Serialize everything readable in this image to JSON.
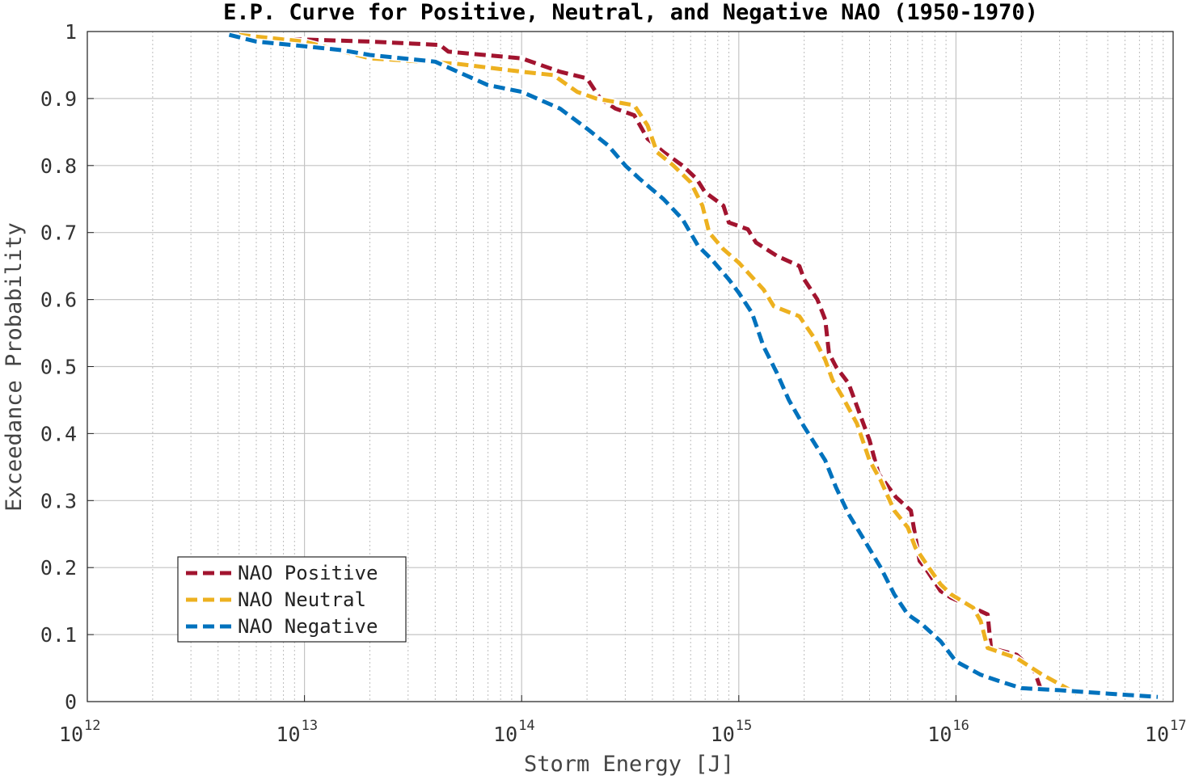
{
  "chart_data": {
    "type": "line",
    "title": "E.P. Curve for Positive, Neutral, and Negative NAO (1950-1970)",
    "xlabel": "Storm Energy [J]",
    "ylabel": "Exceedance Probability",
    "xscale": "log",
    "xlim": [
      1000000000000.0,
      1e+17
    ],
    "ylim": [
      0,
      1
    ],
    "x_ticks": [
      {
        "base": "10",
        "exp": "12",
        "value": 1000000000000.0
      },
      {
        "base": "10",
        "exp": "13",
        "value": 10000000000000.0
      },
      {
        "base": "10",
        "exp": "14",
        "value": 100000000000000.0
      },
      {
        "base": "10",
        "exp": "15",
        "value": 1000000000000000.0
      },
      {
        "base": "10",
        "exp": "16",
        "value": 1e+16
      },
      {
        "base": "10",
        "exp": "17",
        "value": 1e+17
      }
    ],
    "y_ticks": [
      {
        "label": "0",
        "value": 0
      },
      {
        "label": "0.1",
        "value": 0.1
      },
      {
        "label": "0.2",
        "value": 0.2
      },
      {
        "label": "0.3",
        "value": 0.3
      },
      {
        "label": "0.4",
        "value": 0.4
      },
      {
        "label": "0.5",
        "value": 0.5
      },
      {
        "label": "0.6",
        "value": 0.6
      },
      {
        "label": "0.7",
        "value": 0.7
      },
      {
        "label": "0.8",
        "value": 0.8
      },
      {
        "label": "0.9",
        "value": 0.9
      },
      {
        "label": "1",
        "value": 1
      }
    ],
    "grid": true,
    "minor_grid": true,
    "legend_position": "bottom-left",
    "series": [
      {
        "name": "NAO Positive",
        "color": "#A2142F",
        "x": [
          6000000000000.0,
          10000000000000.0,
          20000000000000.0,
          42000000000000.0,
          46000000000000.0,
          100000000000000.0,
          150000000000000.0,
          200000000000000.0,
          230000000000000.0,
          270000000000000.0,
          330000000000000.0,
          380000000000000.0,
          450000000000000.0,
          550000000000000.0,
          640000000000000.0,
          700000000000000.0,
          850000000000000.0,
          900000000000000.0,
          1100000000000000.0,
          1200000000000000.0,
          1500000000000000.0,
          1900000000000000.0,
          2000000000000000.0,
          2300000000000000.0,
          2500000000000000.0,
          2600000000000000.0,
          2800000000000000.0,
          3200000000000000.0,
          3600000000000000.0,
          4000000000000000.0,
          4400000000000000.0,
          5300000000000000.0,
          6200000000000000.0,
          6800000000000000.0,
          7200000000000000.0,
          8500000000000000.0,
          9500000000000000.0,
          1.2e+16,
          1.4e+16,
          1.45e+16,
          1.9e+16,
          2.3e+16,
          2.5e+16
        ],
        "y": [
          0.99,
          0.988,
          0.985,
          0.98,
          0.97,
          0.96,
          0.94,
          0.93,
          0.9,
          0.885,
          0.875,
          0.84,
          0.82,
          0.8,
          0.78,
          0.76,
          0.74,
          0.715,
          0.705,
          0.685,
          0.665,
          0.65,
          0.63,
          0.6,
          0.57,
          0.52,
          0.5,
          0.475,
          0.43,
          0.39,
          0.34,
          0.305,
          0.285,
          0.21,
          0.2,
          0.165,
          0.155,
          0.14,
          0.13,
          0.08,
          0.07,
          0.045,
          0.012
        ]
      },
      {
        "name": "NAO Neutral",
        "color": "#EDB120",
        "x": [
          5000000000000.0,
          10000000000000.0,
          20000000000000.0,
          50000000000000.0,
          100000000000000.0,
          140000000000000.0,
          180000000000000.0,
          220000000000000.0,
          330000000000000.0,
          380000000000000.0,
          420000000000000.0,
          500000000000000.0,
          600000000000000.0,
          680000000000000.0,
          730000000000000.0,
          850000000000000.0,
          1000000000000000.0,
          1300000000000000.0,
          1450000000000000.0,
          1900000000000000.0,
          2200000000000000.0,
          2500000000000000.0,
          2700000000000000.0,
          3000000000000000.0,
          3500000000000000.0,
          4000000000000000.0,
          4500000000000000.0,
          5200000000000000.0,
          6000000000000000.0,
          6500000000000000.0,
          7500000000000000.0,
          8500000000000000.0,
          9500000000000000.0,
          1.2e+16,
          1.3e+16,
          1.4e+16,
          1.9e+16,
          2.5e+16,
          3.6e+16
        ],
        "y": [
          0.995,
          0.985,
          0.96,
          0.952,
          0.94,
          0.935,
          0.91,
          0.9,
          0.89,
          0.86,
          0.82,
          0.8,
          0.775,
          0.74,
          0.7,
          0.675,
          0.655,
          0.615,
          0.59,
          0.575,
          0.545,
          0.51,
          0.48,
          0.455,
          0.415,
          0.36,
          0.33,
          0.285,
          0.26,
          0.23,
          0.2,
          0.175,
          0.16,
          0.14,
          0.12,
          0.08,
          0.065,
          0.04,
          0.012
        ]
      },
      {
        "name": "NAO Negative",
        "color": "#0072BD",
        "x": [
          4500000000000.0,
          6000000000000.0,
          10000000000000.0,
          15000000000000.0,
          20000000000000.0,
          40000000000000.0,
          55000000000000.0,
          70000000000000.0,
          100000000000000.0,
          150000000000000.0,
          200000000000000.0,
          250000000000000.0,
          300000000000000.0,
          350000000000000.0,
          450000000000000.0,
          550000000000000.0,
          650000000000000.0,
          750000000000000.0,
          900000000000000.0,
          1000000000000000.0,
          1150000000000000.0,
          1300000000000000.0,
          1500000000000000.0,
          1700000000000000.0,
          2000000000000000.0,
          2500000000000000.0,
          2800000000000000.0,
          3200000000000000.0,
          3800000000000000.0,
          4500000000000000.0,
          5200000000000000.0,
          6000000000000000.0,
          7000000000000000.0,
          8500000000000000.0,
          1e+16,
          1.3e+16,
          1.6e+16,
          2e+16,
          3e+16,
          5e+16,
          8.5e+16
        ],
        "y": [
          0.995,
          0.985,
          0.978,
          0.972,
          0.965,
          0.955,
          0.935,
          0.92,
          0.91,
          0.885,
          0.855,
          0.83,
          0.8,
          0.78,
          0.75,
          0.72,
          0.68,
          0.66,
          0.63,
          0.61,
          0.58,
          0.53,
          0.49,
          0.45,
          0.41,
          0.36,
          0.32,
          0.28,
          0.24,
          0.2,
          0.16,
          0.13,
          0.115,
          0.09,
          0.06,
          0.04,
          0.03,
          0.02,
          0.017,
          0.012,
          0.007
        ]
      }
    ]
  }
}
